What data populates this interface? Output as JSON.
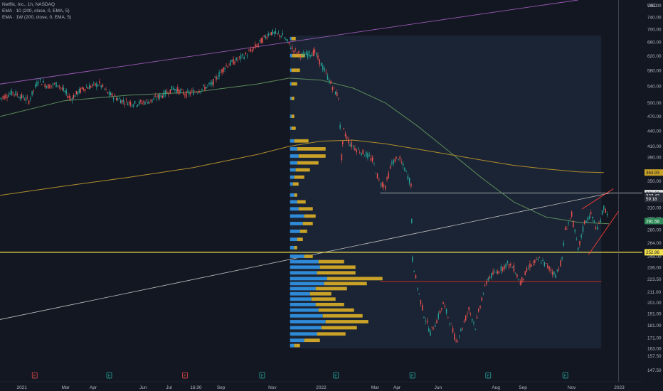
{
  "chart_data": {
    "type": "candlestick",
    "legend": {
      "symbol_line": "Netflix, Inc., 1h, NASDAQ",
      "ema_lines": [
        "EMA · 10 (200, close, 0, EMA, 5)",
        "EMA · 1W (200, close, 0, EMA, 5)"
      ]
    },
    "currency": "USD",
    "y_axis": {
      "scale": "log",
      "ylim": [
        140,
        800
      ],
      "ticks": [
        780.0,
        740.0,
        700.0,
        660.0,
        620.0,
        580.0,
        540.0,
        500.0,
        470.0,
        440.0,
        410.0,
        390.0,
        365.0,
        350.0,
        310.0,
        295.0,
        280.0,
        264.0,
        248.0,
        236.0,
        223.5,
        211.0,
        201.0,
        191.0,
        181.0,
        171.0,
        163.0,
        157.5,
        147.5
      ],
      "tick_labels": [
        "780.00",
        "740.00",
        "700.00",
        "660.00",
        "620.00",
        "580.00",
        "540.00",
        "500.00",
        "470.00",
        "440.00",
        "410.00",
        "390.00",
        "365.00",
        "350.00",
        "310.00",
        "295.00",
        "280.00",
        "264.00",
        "248.00",
        "236.00",
        "223.50",
        "211.00",
        "201.00",
        "191.00",
        "181.00",
        "171.00",
        "163.00",
        "157.50",
        "147.50"
      ]
    },
    "x_axis": {
      "tick_labels": [
        "2021",
        "Mar",
        "Apr",
        "Jun",
        "Jul",
        "16:30",
        "Sep",
        "Nov",
        "2022",
        "Mar",
        "Apr",
        "Jun",
        "Aug",
        "Sep",
        "Nov",
        "2023"
      ],
      "tick_x": [
        0.034,
        0.102,
        0.145,
        0.223,
        0.263,
        0.305,
        0.344,
        0.424,
        0.5,
        0.584,
        0.618,
        0.682,
        0.772,
        0.814,
        0.89,
        0.964
      ]
    },
    "price_labels": [
      {
        "text": "363.93",
        "value": 363.93,
        "color": "#c9a227"
      },
      {
        "text": "331.32",
        "value": 331.32,
        "color": "#e0e0e0"
      },
      {
        "text": "327.42",
        "value": 327.42,
        "color": "#2a2e39"
      },
      {
        "text": "59:18",
        "value": 322.5,
        "color": "#2a2e39"
      },
      {
        "text": "291.56",
        "value": 291.56,
        "color": "#2e8b57"
      },
      {
        "text": "252.86",
        "value": 252.86,
        "color": "#f5e14b"
      }
    ],
    "levels": {
      "horizontal_yellow": 252.86,
      "horizontal_white": 331.32,
      "horizontal_red": 221.3
    },
    "series_path": [
      {
        "x": 0.0,
        "y": 510
      },
      {
        "x": 0.02,
        "y": 525
      },
      {
        "x": 0.045,
        "y": 505
      },
      {
        "x": 0.06,
        "y": 555
      },
      {
        "x": 0.075,
        "y": 540
      },
      {
        "x": 0.09,
        "y": 545
      },
      {
        "x": 0.11,
        "y": 510
      },
      {
        "x": 0.13,
        "y": 535
      },
      {
        "x": 0.155,
        "y": 545
      },
      {
        "x": 0.17,
        "y": 520
      },
      {
        "x": 0.19,
        "y": 505
      },
      {
        "x": 0.21,
        "y": 498
      },
      {
        "x": 0.235,
        "y": 505
      },
      {
        "x": 0.255,
        "y": 520
      },
      {
        "x": 0.27,
        "y": 535
      },
      {
        "x": 0.29,
        "y": 520
      },
      {
        "x": 0.31,
        "y": 530
      },
      {
        "x": 0.33,
        "y": 545
      },
      {
        "x": 0.35,
        "y": 590
      },
      {
        "x": 0.37,
        "y": 610
      },
      {
        "x": 0.385,
        "y": 625
      },
      {
        "x": 0.4,
        "y": 650
      },
      {
        "x": 0.42,
        "y": 690
      },
      {
        "x": 0.44,
        "y": 680
      },
      {
        "x": 0.455,
        "y": 640
      },
      {
        "x": 0.47,
        "y": 620
      },
      {
        "x": 0.49,
        "y": 630
      },
      {
        "x": 0.505,
        "y": 580
      },
      {
        "x": 0.52,
        "y": 530
      },
      {
        "x": 0.527,
        "y": 515
      },
      {
        "x": 0.532,
        "y": 390
      },
      {
        "x": 0.535,
        "y": 440
      },
      {
        "x": 0.545,
        "y": 415
      },
      {
        "x": 0.555,
        "y": 405
      },
      {
        "x": 0.57,
        "y": 395
      },
      {
        "x": 0.58,
        "y": 385
      },
      {
        "x": 0.59,
        "y": 350
      },
      {
        "x": 0.6,
        "y": 342
      },
      {
        "x": 0.61,
        "y": 380
      },
      {
        "x": 0.62,
        "y": 390
      },
      {
        "x": 0.63,
        "y": 370
      },
      {
        "x": 0.64,
        "y": 345
      },
      {
        "x": 0.642,
        "y": 245
      },
      {
        "x": 0.65,
        "y": 215
      },
      {
        "x": 0.66,
        "y": 190
      },
      {
        "x": 0.67,
        "y": 175
      },
      {
        "x": 0.68,
        "y": 185
      },
      {
        "x": 0.69,
        "y": 200
      },
      {
        "x": 0.7,
        "y": 185
      },
      {
        "x": 0.71,
        "y": 168
      },
      {
        "x": 0.72,
        "y": 180
      },
      {
        "x": 0.73,
        "y": 195
      },
      {
        "x": 0.74,
        "y": 180
      },
      {
        "x": 0.75,
        "y": 205
      },
      {
        "x": 0.76,
        "y": 225
      },
      {
        "x": 0.775,
        "y": 232
      },
      {
        "x": 0.79,
        "y": 240
      },
      {
        "x": 0.8,
        "y": 235
      },
      {
        "x": 0.81,
        "y": 220
      },
      {
        "x": 0.825,
        "y": 238
      },
      {
        "x": 0.84,
        "y": 245
      },
      {
        "x": 0.855,
        "y": 235
      },
      {
        "x": 0.865,
        "y": 228
      },
      {
        "x": 0.875,
        "y": 245
      },
      {
        "x": 0.88,
        "y": 280
      },
      {
        "x": 0.89,
        "y": 300
      },
      {
        "x": 0.9,
        "y": 255
      },
      {
        "x": 0.91,
        "y": 290
      },
      {
        "x": 0.92,
        "y": 300
      },
      {
        "x": 0.93,
        "y": 280
      },
      {
        "x": 0.94,
        "y": 310
      },
      {
        "x": 0.948,
        "y": 300
      }
    ],
    "ema_200_1h": [
      {
        "x": 0.0,
        "y": 470
      },
      {
        "x": 0.1,
        "y": 505
      },
      {
        "x": 0.2,
        "y": 518
      },
      {
        "x": 0.3,
        "y": 525
      },
      {
        "x": 0.4,
        "y": 545
      },
      {
        "x": 0.45,
        "y": 560
      },
      {
        "x": 0.5,
        "y": 555
      },
      {
        "x": 0.55,
        "y": 535
      },
      {
        "x": 0.6,
        "y": 500
      },
      {
        "x": 0.65,
        "y": 450
      },
      {
        "x": 0.7,
        "y": 400
      },
      {
        "x": 0.75,
        "y": 355
      },
      {
        "x": 0.8,
        "y": 318
      },
      {
        "x": 0.85,
        "y": 297
      },
      {
        "x": 0.9,
        "y": 290
      },
      {
        "x": 0.948,
        "y": 288
      }
    ],
    "ema_200_1w": [
      {
        "x": 0.0,
        "y": 328
      },
      {
        "x": 0.1,
        "y": 342
      },
      {
        "x": 0.2,
        "y": 356
      },
      {
        "x": 0.3,
        "y": 372
      },
      {
        "x": 0.4,
        "y": 395
      },
      {
        "x": 0.45,
        "y": 410
      },
      {
        "x": 0.5,
        "y": 420
      },
      {
        "x": 0.55,
        "y": 422
      },
      {
        "x": 0.6,
        "y": 415
      },
      {
        "x": 0.65,
        "y": 405
      },
      {
        "x": 0.7,
        "y": 395
      },
      {
        "x": 0.75,
        "y": 385
      },
      {
        "x": 0.8,
        "y": 376
      },
      {
        "x": 0.85,
        "y": 370
      },
      {
        "x": 0.9,
        "y": 365
      },
      {
        "x": 0.94,
        "y": 363.93
      }
    ],
    "volume_profile": {
      "x_start": 0.4515,
      "rows": [
        {
          "price": 670,
          "blue": 2,
          "gold": 6
        },
        {
          "price": 620,
          "blue": 3,
          "gold": 18
        },
        {
          "price": 580,
          "blue": 2,
          "gold": 12
        },
        {
          "price": 545,
          "blue": 2,
          "gold": 8
        },
        {
          "price": 510,
          "blue": 2,
          "gold": 4
        },
        {
          "price": 470,
          "blue": 2,
          "gold": 4
        },
        {
          "price": 445,
          "blue": 2,
          "gold": 6
        },
        {
          "price": 420,
          "blue": 6,
          "gold": 20
        },
        {
          "price": 405,
          "blue": 10,
          "gold": 40
        },
        {
          "price": 392,
          "blue": 12,
          "gold": 38
        },
        {
          "price": 380,
          "blue": 10,
          "gold": 30
        },
        {
          "price": 368,
          "blue": 8,
          "gold": 20
        },
        {
          "price": 356,
          "blue": 6,
          "gold": 14
        },
        {
          "price": 345,
          "blue": 4,
          "gold": 8
        },
        {
          "price": 328,
          "blue": 6,
          "gold": 4
        },
        {
          "price": 318,
          "blue": 10,
          "gold": 12
        },
        {
          "price": 308,
          "blue": 12,
          "gold": 20
        },
        {
          "price": 298,
          "blue": 20,
          "gold": 16
        },
        {
          "price": 288,
          "blue": 18,
          "gold": 14
        },
        {
          "price": 278,
          "blue": 14,
          "gold": 10
        },
        {
          "price": 268,
          "blue": 10,
          "gold": 8
        },
        {
          "price": 258,
          "blue": 6,
          "gold": 4
        },
        {
          "price": 248,
          "blue": 20,
          "gold": 12
        },
        {
          "price": 242,
          "blue": 40,
          "gold": 36
        },
        {
          "price": 236,
          "blue": 42,
          "gold": 50
        },
        {
          "price": 230,
          "blue": 38,
          "gold": 54
        },
        {
          "price": 224,
          "blue": 52,
          "gold": 78
        },
        {
          "price": 219,
          "blue": 48,
          "gold": 60
        },
        {
          "price": 214,
          "blue": 36,
          "gold": 44
        },
        {
          "price": 209,
          "blue": 28,
          "gold": 30
        },
        {
          "price": 204,
          "blue": 30,
          "gold": 34
        },
        {
          "price": 199,
          "blue": 36,
          "gold": 40
        },
        {
          "price": 194,
          "blue": 40,
          "gold": 50
        },
        {
          "price": 189,
          "blue": 46,
          "gold": 56
        },
        {
          "price": 184,
          "blue": 50,
          "gold": 60
        },
        {
          "price": 179,
          "blue": 44,
          "gold": 50
        },
        {
          "price": 174,
          "blue": 38,
          "gold": 40
        },
        {
          "price": 169,
          "blue": 20,
          "gold": 22
        },
        {
          "price": 165,
          "blue": 6,
          "gold": 8
        }
      ]
    },
    "event_markers": [
      {
        "label": "E",
        "x": 0.054,
        "color": "#e04a4a"
      },
      {
        "label": "E",
        "x": 0.17,
        "color": "#26a69a"
      },
      {
        "label": "E",
        "x": 0.288,
        "color": "#e04a4a"
      },
      {
        "label": "E",
        "x": 0.408,
        "color": "#26a69a"
      },
      {
        "label": "E",
        "x": 0.523,
        "color": "#26a69a"
      },
      {
        "label": "E",
        "x": 0.642,
        "color": "#26a69a"
      },
      {
        "label": "E",
        "x": 0.76,
        "color": "#26a69a"
      },
      {
        "label": "E",
        "x": 0.88,
        "color": "#26a69a"
      }
    ],
    "colors": {
      "background": "#131722",
      "highlight": "#1b2434",
      "ema_10": "#5b8c5a",
      "ema_1w": "#b08d2c",
      "purple_line": "#9b59b6",
      "trend_line": "#c0c0c0",
      "wedge": "#e53935",
      "up": "#26a69a",
      "down": "#ef5350",
      "vp_blue": "#2f8bd8",
      "vp_gold": "#c9a227"
    }
  }
}
